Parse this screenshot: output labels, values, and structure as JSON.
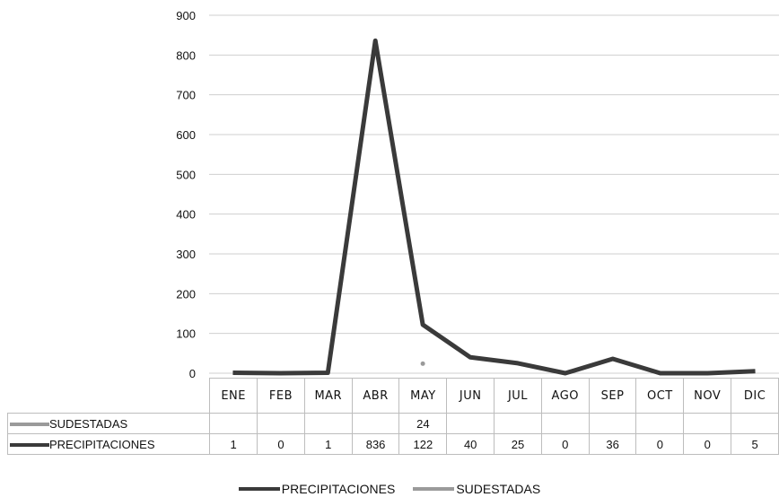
{
  "chart_data": {
    "type": "line",
    "categories": [
      "ENE",
      "FEB",
      "MAR",
      "ABR",
      "MAY",
      "JUN",
      "JUL",
      "AGO",
      "SEP",
      "OCT",
      "NOV",
      "DIC"
    ],
    "series": [
      {
        "name": "SUDESTADAS",
        "values": [
          null,
          null,
          null,
          null,
          24,
          null,
          null,
          null,
          null,
          null,
          null,
          null
        ],
        "color": "#9a9a9a"
      },
      {
        "name": "PRECIPITACIONES",
        "values": [
          1,
          0,
          1,
          836,
          122,
          40,
          25,
          0,
          36,
          0,
          0,
          5
        ],
        "color": "#3a3a3a"
      }
    ],
    "ylim": [
      0,
      900
    ],
    "yticks": [
      0,
      100,
      200,
      300,
      400,
      500,
      600,
      700,
      800,
      900
    ],
    "grid": true,
    "legend_placement": "bottom"
  }
}
